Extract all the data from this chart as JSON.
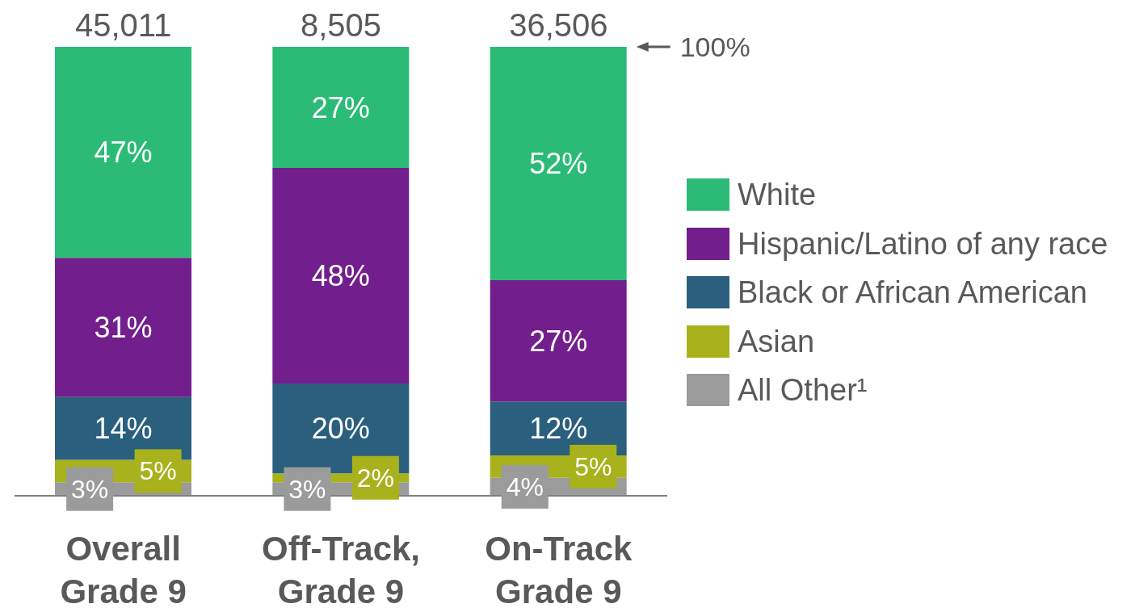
{
  "chart_data": {
    "type": "bar",
    "stacked": true,
    "categories": [
      "Overall Grade 9",
      "Off-Track, Grade 9",
      "On-Track Grade 9"
    ],
    "series": [
      {
        "name": "All Other¹",
        "color": "#9b9b9b",
        "values": [
          3,
          3,
          4
        ],
        "value_labels": [
          "3%",
          "3%",
          "4%"
        ]
      },
      {
        "name": "Asian",
        "color": "#a8b21c",
        "values": [
          5,
          2,
          5
        ],
        "value_labels": [
          "5%",
          "2%",
          "5%"
        ]
      },
      {
        "name": "Black or African American",
        "color": "#2a5f7e",
        "values": [
          14,
          20,
          12
        ],
        "value_labels": [
          "14%",
          "20%",
          "12%"
        ]
      },
      {
        "name": "Hispanic/Latino of any race",
        "color": "#721e8c",
        "values": [
          31,
          48,
          27
        ],
        "value_labels": [
          "31%",
          "48%",
          "27%"
        ]
      },
      {
        "name": "White",
        "color": "#2bbb77",
        "values": [
          47,
          27,
          52
        ],
        "value_labels": [
          "47%",
          "27%",
          "52%"
        ]
      }
    ],
    "annotations": [
      {
        "text": "45,011",
        "x": "Overall Grade 9",
        "y": 100
      },
      {
        "text": "8,505",
        "x": "Off-Track, Grade 9",
        "y": 100
      },
      {
        "text": "36,506",
        "x": "On-Track Grade 9",
        "y": 100
      },
      "100%"
    ],
    "legend": "right"
  }
}
